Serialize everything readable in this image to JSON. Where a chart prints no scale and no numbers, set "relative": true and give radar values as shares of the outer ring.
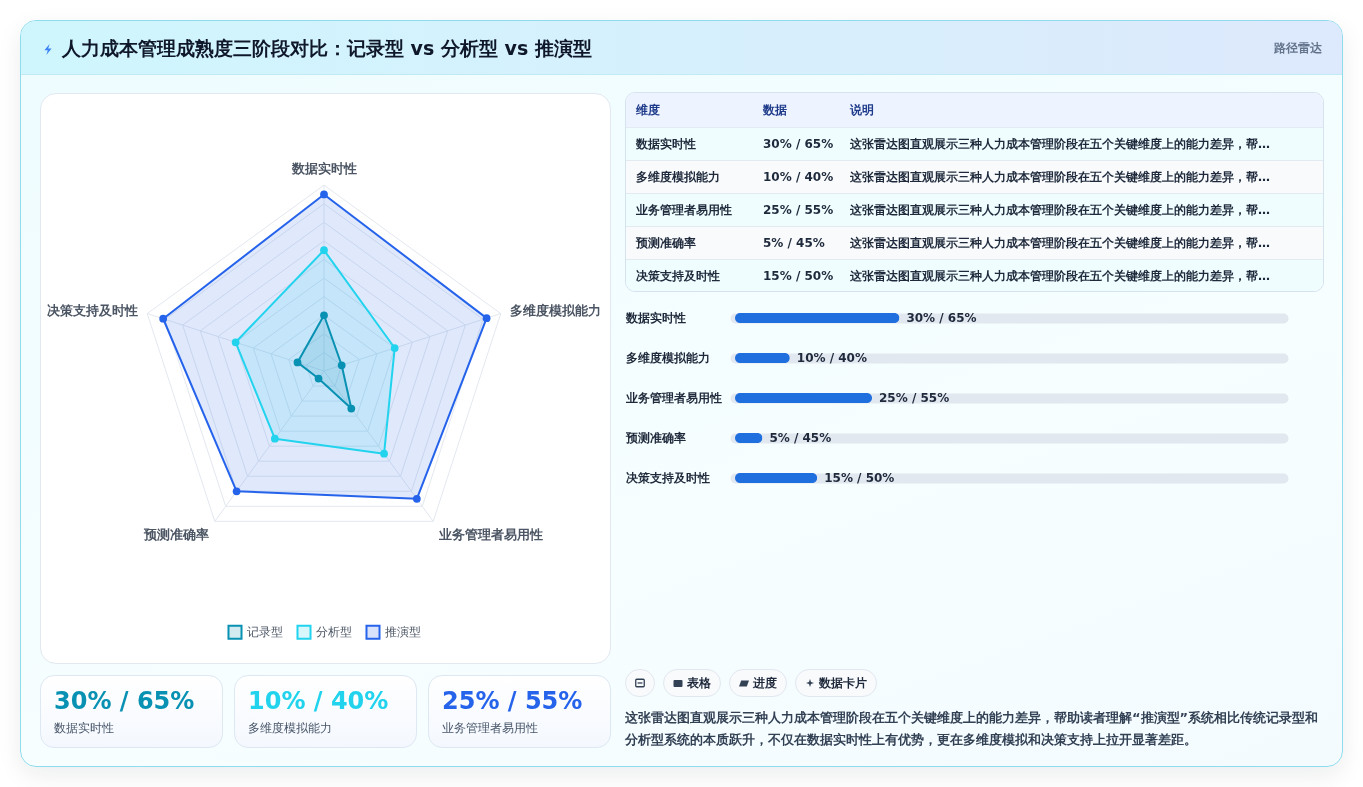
{
  "chart_data": [
    {
      "type": "radar",
      "title": "人力成本管理成熟度三阶段对比：记录型 vs 分析型 vs 推演型",
      "categories": [
        "数据实时性",
        "多维度模拟能力",
        "业务管理者易用性",
        "预测准确率",
        "决策支持及时性"
      ],
      "series": [
        {
          "name": "记录型",
          "color": "#0891b2",
          "values": [
            0.3,
            0.1,
            0.25,
            0.05,
            0.15
          ]
        },
        {
          "name": "分析型",
          "color": "#22d3ee",
          "values": [
            0.65,
            0.4,
            0.55,
            0.45,
            0.5
          ]
        },
        {
          "name": "推演型",
          "color": "#2563eb",
          "values": [
            0.95,
            0.92,
            0.85,
            0.8,
            0.91
          ]
        }
      ],
      "relative": true,
      "legend": "bottom",
      "grid": true,
      "marker": "circle",
      "annotations": [
        "这张雷达图直观展示三种人力成本管理阶段在五个关键维度上的能力差异，帮助读者理解“推演型”系统相比传统记录型和分析型系统的本质跃升，不仅在数据实时性上有优势，更在多维度模拟和决策支持上拉开显著差距。"
      ]
    },
    {
      "type": "other",
      "title": "路径雷达",
      "annotations": [
        "维度",
        "数据",
        "说明",
        "数据实时性",
        "30% / 65%",
        "这张雷达图直观展示三种人力成本管理阶段在五个关键维度上的能力差异，帮…",
        "多维度模拟能力",
        "10% / 40%",
        "这张雷达图直观展示三种人力成本管理阶段在五个关键维度上的能力差异，帮…",
        "业务管理者易用性",
        "25% / 55%",
        "这张雷达图直观展示三种人力成本管理阶段在五个关键维度上的能力差异，帮…",
        "预测准确率",
        "5% / 45%",
        "这张雷达图直观展示三种人力成本管理阶段在五个关键维度上的能力差异，帮…",
        "决策支持及时性",
        "15% / 50%",
        "这张雷达图直观展示三种人力成本管理阶段在五个关键维度上的能力差异，帮…"
      ]
    },
    {
      "type": "bar",
      "orientation": "horizontal",
      "categories": [
        "数据实时性",
        "多维度模拟能力",
        "业务管理者易用性",
        "预测准确率",
        "决策支持及时性"
      ],
      "values": [
        30,
        10,
        25,
        5,
        15
      ],
      "value_labels": [
        "30% / 65%",
        "10% / 40%",
        "25% / 55%",
        "5% / 45%",
        "15% / 50%"
      ],
      "color": "#1f6fde",
      "xlim": [
        0,
        100
      ],
      "grid": "y",
      "tick_labels": "y"
    },
    {
      "type": "other",
      "annotations": [
        "30% / 65%",
        "数据实时性",
        "10% / 40%",
        "多维度模拟能力",
        "25% / 55%",
        "业务管理者易用性"
      ],
      "colors": [
        "#0891b2",
        "#22d3ee",
        "#2563eb"
      ]
    },
    {
      "type": "other",
      "categories": [
        null,
        "表格",
        "进度",
        "数据卡片"
      ]
    }
  ]
}
